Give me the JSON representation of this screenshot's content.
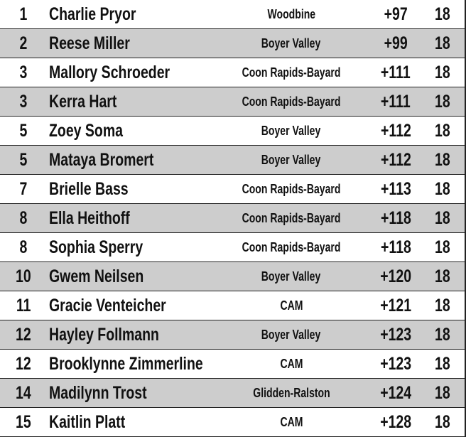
{
  "rows": [
    {
      "rank": "1",
      "name": "Charlie Pryor",
      "school": "Woodbine",
      "score": "+97",
      "holes": "18"
    },
    {
      "rank": "2",
      "name": "Reese Miller",
      "school": "Boyer Valley",
      "score": "+99",
      "holes": "18"
    },
    {
      "rank": "3",
      "name": "Mallory Schroeder",
      "school": "Coon Rapids-Bayard",
      "score": "+111",
      "holes": "18"
    },
    {
      "rank": "3",
      "name": "Kerra Hart",
      "school": "Coon Rapids-Bayard",
      "score": "+111",
      "holes": "18"
    },
    {
      "rank": "5",
      "name": "Zoey Soma",
      "school": "Boyer Valley",
      "score": "+112",
      "holes": "18"
    },
    {
      "rank": "5",
      "name": "Mataya Bromert",
      "school": "Boyer Valley",
      "score": "+112",
      "holes": "18"
    },
    {
      "rank": "7",
      "name": "Brielle Bass",
      "school": "Coon Rapids-Bayard",
      "score": "+113",
      "holes": "18"
    },
    {
      "rank": "8",
      "name": "Ella Heithoff",
      "school": "Coon Rapids-Bayard",
      "score": "+118",
      "holes": "18"
    },
    {
      "rank": "8",
      "name": "Sophia Sperry",
      "school": "Coon Rapids-Bayard",
      "score": "+118",
      "holes": "18"
    },
    {
      "rank": "10",
      "name": "Gwem Neilsen",
      "school": "Boyer Valley",
      "score": "+120",
      "holes": "18"
    },
    {
      "rank": "11",
      "name": "Gracie Venteicher",
      "school": "CAM",
      "score": "+121",
      "holes": "18"
    },
    {
      "rank": "12",
      "name": "Hayley Follmann",
      "school": "Boyer Valley",
      "score": "+123",
      "holes": "18"
    },
    {
      "rank": "12",
      "name": "Brooklynne Zimmerline",
      "school": "CAM",
      "score": "+123",
      "holes": "18"
    },
    {
      "rank": "14",
      "name": "Madilynn Trost",
      "school": "Glidden-Ralston",
      "score": "+124",
      "holes": "18"
    },
    {
      "rank": "15",
      "name": "Kaitlin Platt",
      "school": "CAM",
      "score": "+128",
      "holes": "18"
    }
  ],
  "colors": {
    "alt_row": "#cdcdcd",
    "border": "#222222"
  }
}
